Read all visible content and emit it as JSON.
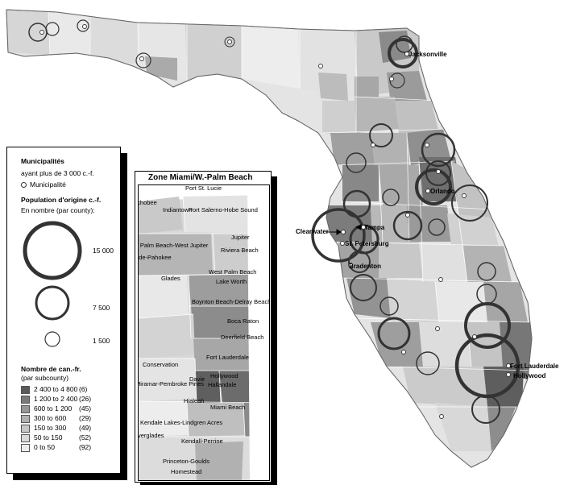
{
  "map": {
    "cities": [
      "Jacksonville",
      "Orlando",
      "Clearwater",
      "Tampa",
      "St. Petersburg",
      "Bradenton",
      "Fort Lauderdale",
      "Hollywood"
    ]
  },
  "legend": {
    "title_line1": "Municipalités",
    "title_line2": "ayant plus de 3 000 c.-f.",
    "municipality_label": "Municipalité",
    "pop_title": "Population d'origine c.-f.",
    "pop_subtitle": "En nombre (par county):",
    "circle_values": [
      "15 000",
      "7 500",
      "1 500"
    ],
    "class_title": "Nombre de can.-fr.",
    "class_subtitle": "(par subcounty)",
    "classes": [
      {
        "label": "2 400 to 4 800",
        "count": "(6)",
        "color": "#5a5a5a"
      },
      {
        "label": "1 200 to 2 400",
        "count": "(26)",
        "color": "#7a7a7a"
      },
      {
        "label": "600 to 1 200",
        "count": "(45)",
        "color": "#979797"
      },
      {
        "label": "300 to 600",
        "count": "(29)",
        "color": "#b0b0b0"
      },
      {
        "label": "150 to 300",
        "count": "(49)",
        "color": "#c6c6c6"
      },
      {
        "label": "50 to 150",
        "count": "(52)",
        "color": "#d9d9d9"
      },
      {
        "label": "0 to 50",
        "count": "(92)",
        "color": "#ececec"
      }
    ]
  },
  "inset": {
    "title": "Zone Miami/W.-Palm Beach",
    "labels": [
      "echobee",
      "Port St. Lucie",
      "Indiantown",
      "Port Salerno-Hobe Sound",
      "Jupiter",
      "al Palm Beach-West Jupiter",
      "Riviera Beach",
      "ade-Pahokee",
      "Glades",
      "West Palm Beach",
      "Lake Worth",
      "Boynton Beach-Delray Beach",
      "Boca Raton",
      "Deerfield Beach",
      "Fort Lauderdale",
      "Conservation",
      "Davie",
      "Hollywood",
      "Miramar-Pembroke Pines",
      "Hallandale",
      "Hialeah",
      "Miami Beach",
      "Kendale Lakes-Lindgren Acres",
      "Everglades",
      "Kendall-Perrine",
      "Princeton-Goulds",
      "Homestead"
    ]
  }
}
